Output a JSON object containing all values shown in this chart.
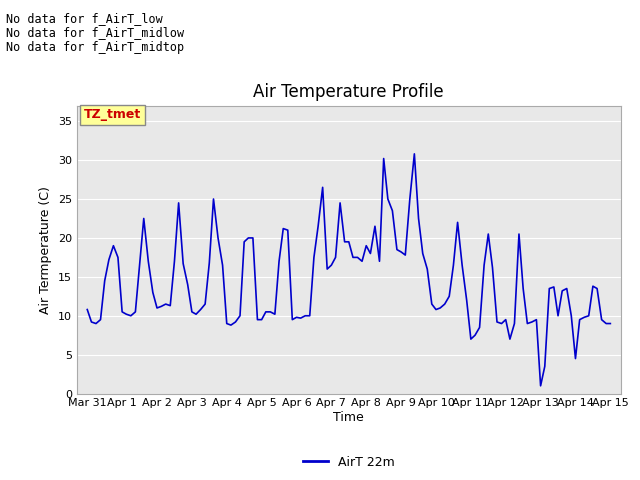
{
  "title": "Air Temperature Profile",
  "xlabel": "Time",
  "ylabel": "Air Termperature (C)",
  "ylim": [
    0,
    37
  ],
  "yticks": [
    0,
    5,
    10,
    15,
    20,
    25,
    30,
    35
  ],
  "line_color": "#0000cc",
  "line_label": "AirT 22m",
  "background_color": "#e8e8e8",
  "annotations_text": [
    "No data for f_AirT_low",
    "No data for f_AirT_midlow",
    "No data for f_AirT_midtop"
  ],
  "legend_box_color": "#ffff99",
  "legend_box_text": "TZ_tmet",
  "legend_box_text_color": "#cc0000",
  "x_values": [
    0.0,
    0.12,
    0.25,
    0.38,
    0.5,
    0.62,
    0.75,
    0.88,
    1.0,
    1.12,
    1.25,
    1.38,
    1.5,
    1.62,
    1.75,
    1.88,
    2.0,
    2.12,
    2.25,
    2.38,
    2.5,
    2.62,
    2.75,
    2.88,
    3.0,
    3.12,
    3.25,
    3.38,
    3.5,
    3.62,
    3.75,
    3.88,
    4.0,
    4.12,
    4.25,
    4.38,
    4.5,
    4.62,
    4.75,
    4.88,
    5.0,
    5.12,
    5.25,
    5.38,
    5.5,
    5.62,
    5.75,
    5.88,
    6.0,
    6.12,
    6.25,
    6.38,
    6.5,
    6.62,
    6.75,
    6.88,
    7.0,
    7.12,
    7.25,
    7.38,
    7.5,
    7.62,
    7.75,
    7.88,
    8.0,
    8.12,
    8.25,
    8.38,
    8.5,
    8.62,
    8.75,
    8.88,
    9.0,
    9.12,
    9.25,
    9.38,
    9.5,
    9.62,
    9.75,
    9.88,
    10.0,
    10.12,
    10.25,
    10.38,
    10.5,
    10.62,
    10.75,
    10.88,
    11.0,
    11.12,
    11.25,
    11.38,
    11.5,
    11.62,
    11.75,
    11.88,
    12.0,
    12.12,
    12.25,
    12.38,
    12.5,
    12.62,
    12.75,
    12.88,
    13.0,
    13.12,
    13.25,
    13.38,
    13.5,
    13.62,
    13.75,
    13.88,
    14.0,
    14.12,
    14.25,
    14.38,
    14.5,
    14.62,
    14.75,
    14.88,
    15.0
  ],
  "y_values": [
    10.8,
    9.2,
    9.0,
    9.5,
    14.5,
    17.2,
    19.0,
    17.5,
    10.5,
    10.2,
    10.0,
    10.5,
    16.5,
    22.5,
    17.0,
    13.0,
    11.0,
    11.2,
    11.5,
    11.3,
    17.0,
    24.5,
    16.7,
    14.0,
    10.5,
    10.2,
    10.8,
    11.5,
    16.8,
    25.0,
    20.0,
    16.5,
    9.0,
    8.8,
    9.2,
    10.0,
    19.5,
    20.0,
    20.0,
    9.5,
    9.5,
    10.5,
    10.5,
    10.2,
    17.0,
    21.2,
    21.0,
    9.5,
    9.8,
    9.7,
    10.0,
    10.0,
    17.5,
    21.5,
    26.5,
    16.0,
    16.5,
    17.5,
    24.5,
    19.5,
    19.5,
    17.5,
    17.5,
    17.0,
    19.0,
    18.0,
    21.5,
    17.0,
    30.2,
    25.0,
    23.5,
    18.5,
    18.2,
    17.8,
    25.0,
    30.8,
    22.5,
    18.0,
    16.0,
    11.5,
    10.8,
    11.0,
    11.5,
    12.5,
    16.5,
    22.0,
    16.5,
    12.0,
    7.0,
    7.5,
    8.5,
    16.5,
    20.5,
    16.2,
    9.2,
    9.0,
    9.5,
    7.0,
    9.0,
    20.5,
    13.5,
    9.0,
    9.2,
    9.5,
    1.0,
    3.5,
    13.5,
    13.7,
    10.0,
    13.2,
    13.5,
    10.0,
    4.5,
    9.5,
    9.8,
    10.0,
    13.8,
    13.5,
    9.5,
    9.0,
    9.0
  ],
  "xtick_positions": [
    0,
    1,
    2,
    3,
    4,
    5,
    6,
    7,
    8,
    9,
    10,
    11,
    12,
    13,
    14,
    15
  ],
  "xtick_labels": [
    "Mar 31",
    "Apr 1",
    "Apr 2",
    "Apr 3",
    "Apr 4",
    "Apr 5",
    "Apr 6",
    "Apr 7",
    "Apr 8",
    "Apr 9",
    "Apr 10",
    "Apr 11",
    "Apr 12",
    "Apr 13",
    "Apr 14",
    "Apr 15"
  ]
}
